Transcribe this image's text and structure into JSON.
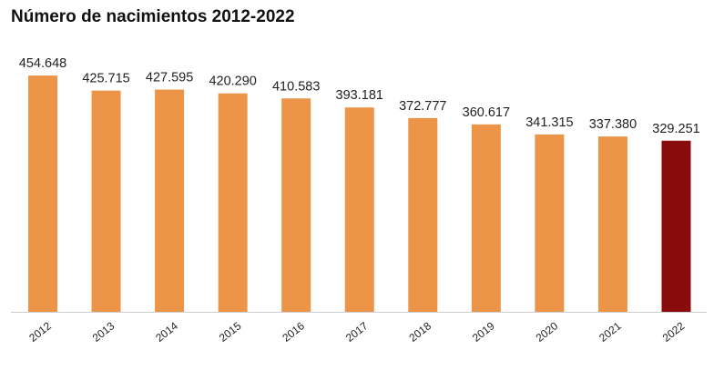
{
  "chart_data": {
    "type": "bar",
    "title": "Número de nacimientos 2012-2022",
    "xlabel": "",
    "ylabel": "",
    "ylim": [
      0,
      600000
    ],
    "grid": false,
    "categories": [
      "2012",
      "2013",
      "2014",
      "2015",
      "2016",
      "2017",
      "2018",
      "2019",
      "2020",
      "2021",
      "2022"
    ],
    "values": [
      454648,
      425715,
      427595,
      420290,
      410583,
      393181,
      372777,
      360617,
      341315,
      337380,
      329251
    ],
    "value_labels": [
      "454.648",
      "425.715",
      "427.595",
      "420.290",
      "410.583",
      "393.181",
      "372.777",
      "360.617",
      "341.315",
      "337.380",
      "329.251"
    ],
    "colors": {
      "default": "#EC9447",
      "highlight": "#8A0B0B",
      "axis": "#cccccc"
    },
    "highlight_category": "2022"
  }
}
